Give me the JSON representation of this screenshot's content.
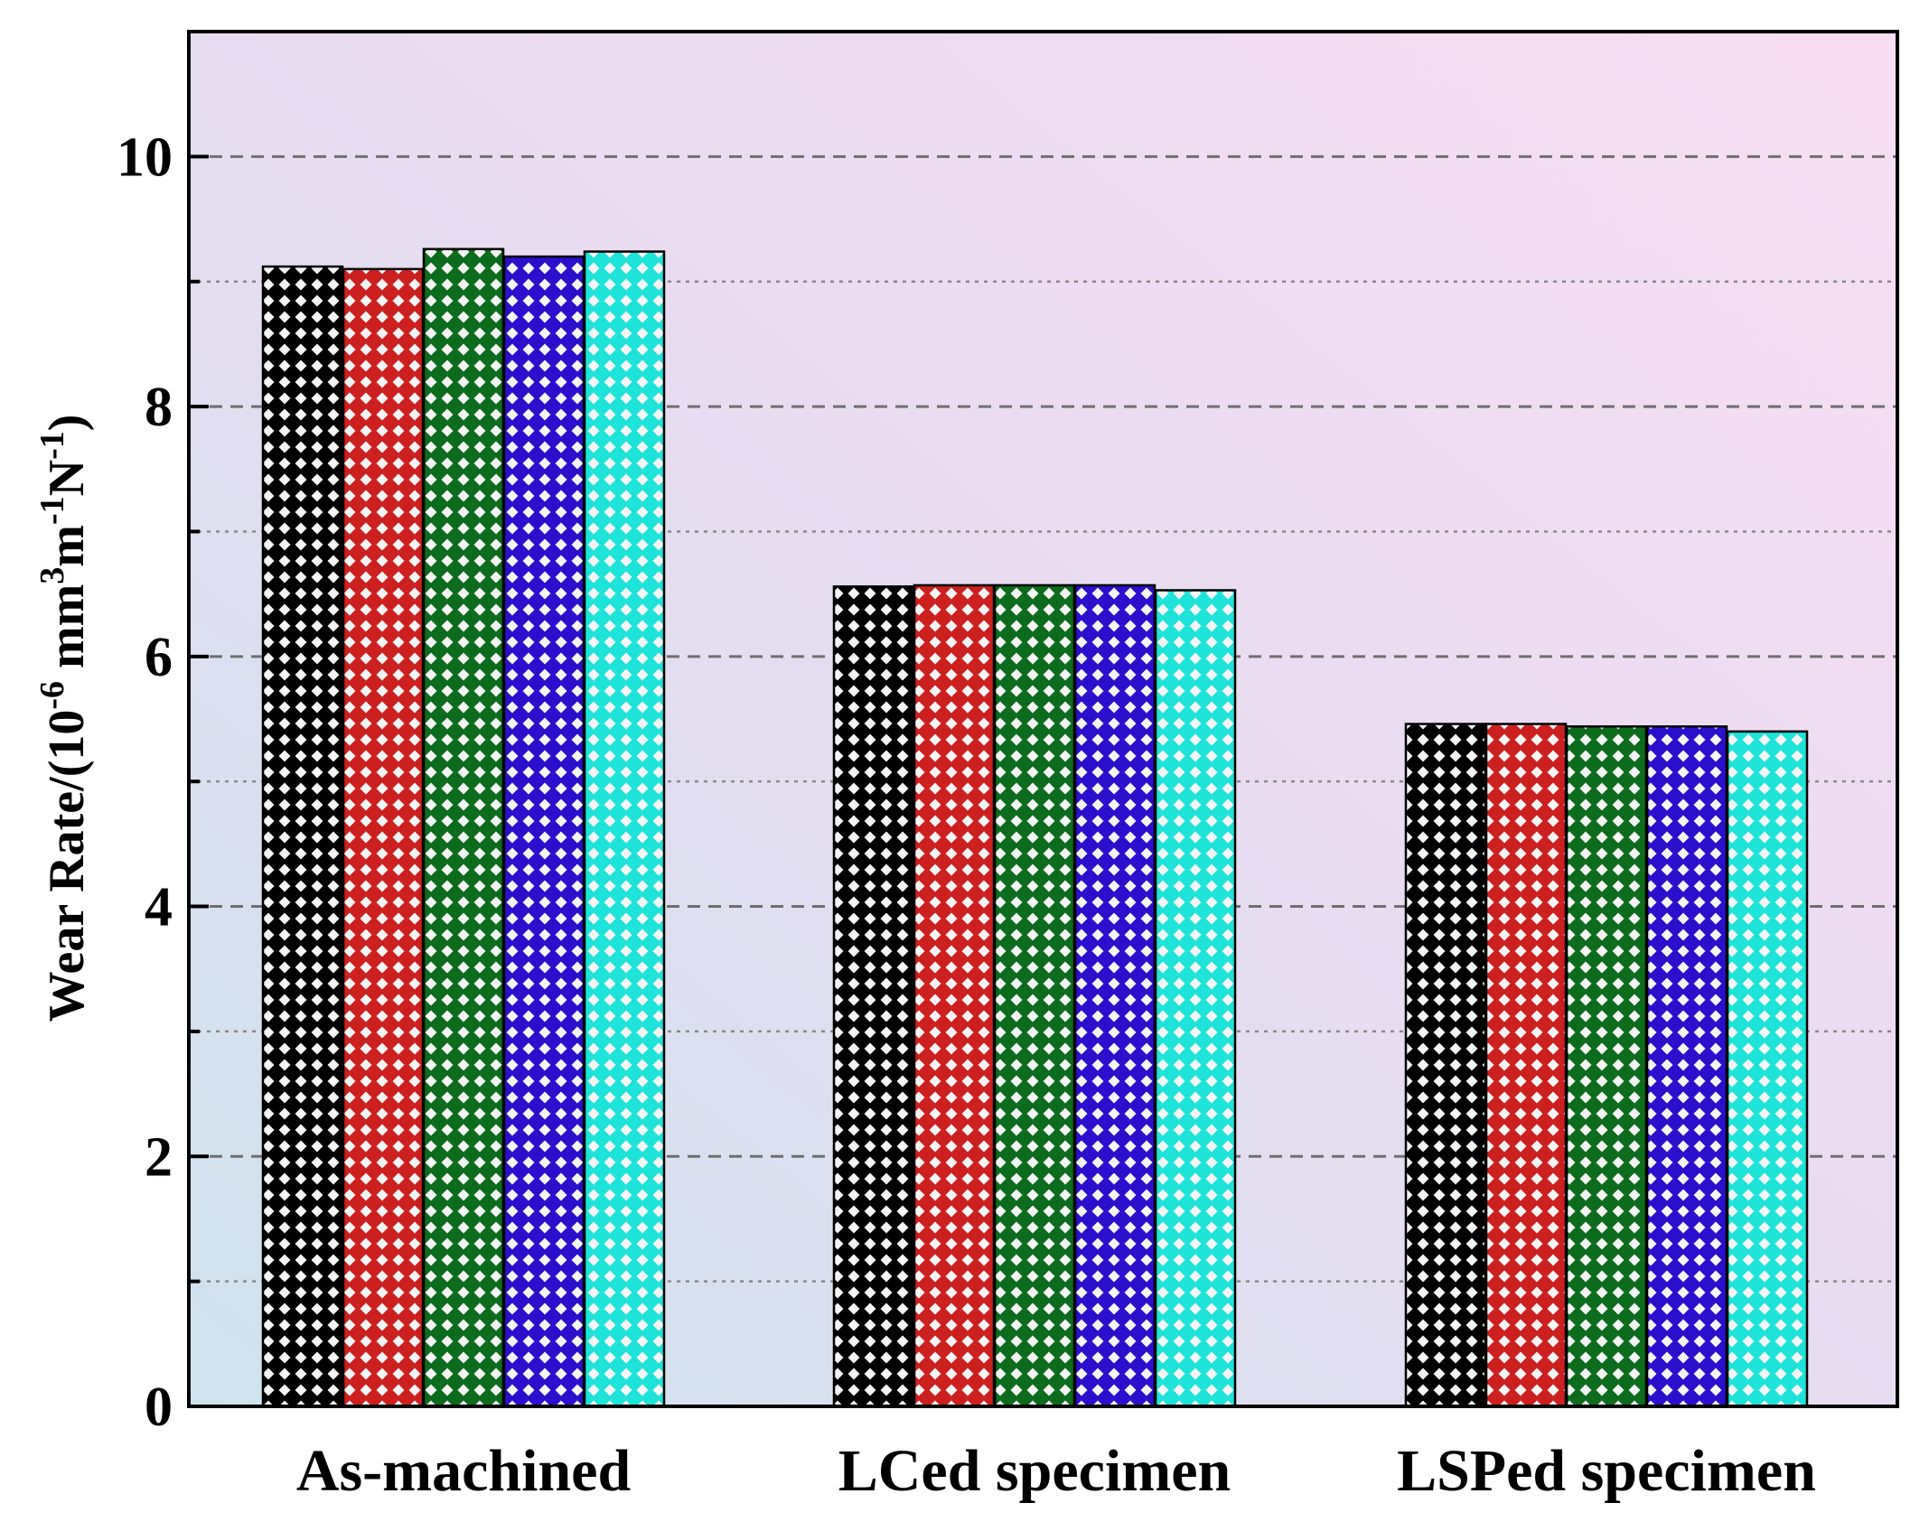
{
  "chart_data": {
    "type": "bar",
    "categories": [
      "As-machined",
      "LCed specimen",
      "LSPed specimen"
    ],
    "ylabel": {
      "prefix": "Wear Rate/(10",
      "exp1": "-6",
      "mid1": " mm",
      "exp2": "3",
      "mid2": "m",
      "exp3": "-1",
      "mid3": "N",
      "exp4": "-1",
      "suffix": ")"
    },
    "ylim": [
      0,
      11
    ],
    "yticks": [
      0,
      2,
      4,
      6,
      8,
      10
    ],
    "ytick_labels": [
      "0",
      "2",
      "4",
      "6",
      "8",
      "10"
    ],
    "grid": true,
    "series": [
      {
        "color": "#000000",
        "values": [
          9.12,
          6.56,
          5.46
        ]
      },
      {
        "color": "#cc2020",
        "values": [
          9.1,
          6.57,
          5.46
        ]
      },
      {
        "color": "#0d6b1e",
        "values": [
          9.26,
          6.57,
          5.44
        ]
      },
      {
        "color": "#2a10cc",
        "values": [
          9.2,
          6.57,
          5.44
        ]
      },
      {
        "color": "#1ee3d8",
        "values": [
          9.24,
          6.53,
          5.4
        ]
      }
    ]
  }
}
